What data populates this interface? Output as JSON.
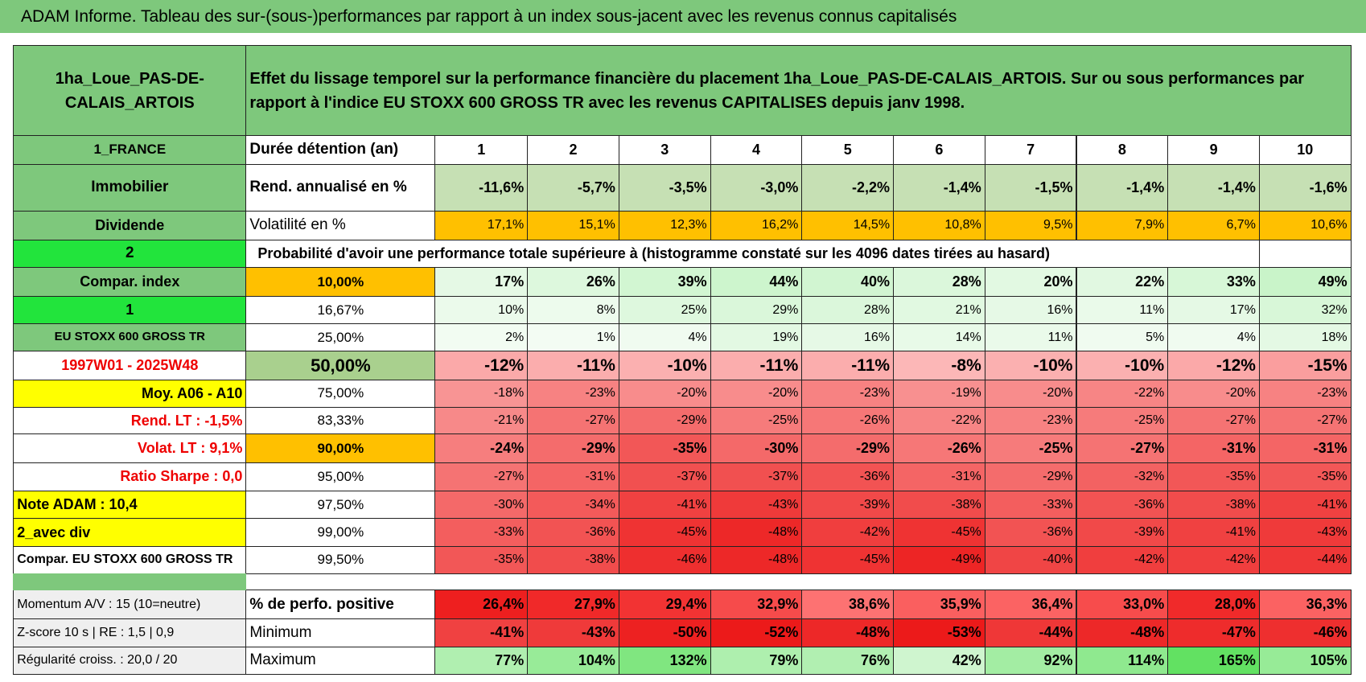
{
  "header": {
    "title": "ADAM Informe. Tableau des sur-(sous-)performances par rapport à un index sous-jacent avec les revenus connus capitalisés"
  },
  "table": {
    "rows": [
      [
        "1ha_Loue_PAS-DE-CALAIS_ARTOIS",
        "Effet du lissage temporel sur la performance financière du placement 1ha_Loue_PAS-DE-CALAIS_ARTOIS. Sur ou sous performances par rapport à l'indice EU STOXX 600 GROSS TR avec les revenus CAPITALISES depuis janv 1998."
      ],
      [
        "1_FRANCE",
        "Durée détention (an)",
        "1",
        "2",
        "3",
        "4",
        "5",
        "6",
        "7",
        "8",
        "9",
        "10"
      ],
      [
        "Immobilier",
        "Rend. annualisé en %",
        "-11,6%",
        "-5,7%",
        "-3,5%",
        "-3,0%",
        "-2,2%",
        "-1,4%",
        "-1,5%",
        "-1,4%",
        "-1,4%",
        "-1,6%"
      ],
      [
        "Dividende",
        "Volatilité en %",
        "17,1%",
        "15,1%",
        "12,3%",
        "16,2%",
        "14,5%",
        "10,8%",
        "9,5%",
        "7,9%",
        "6,7%",
        "10,6%"
      ],
      [
        "2",
        "Probabilité d'avoir une performance totale supérieure à (histogramme constaté sur les 4096 dates tirées au hasard)"
      ],
      [
        "Compar. index",
        "10,00%",
        "17%",
        "26%",
        "39%",
        "44%",
        "40%",
        "28%",
        "20%",
        "22%",
        "33%",
        "49%"
      ],
      [
        "1",
        "16,67%",
        "10%",
        "8%",
        "25%",
        "29%",
        "28%",
        "21%",
        "16%",
        "11%",
        "17%",
        "32%"
      ],
      [
        "EU STOXX 600 GROSS TR",
        "25,00%",
        "2%",
        "1%",
        "4%",
        "19%",
        "16%",
        "14%",
        "11%",
        "5%",
        "4%",
        "18%"
      ],
      [
        "1997W01 - 2025W48",
        "50,00%",
        "-12%",
        "-11%",
        "-10%",
        "-11%",
        "-11%",
        "-8%",
        "-10%",
        "-10%",
        "-12%",
        "-15%"
      ],
      [
        "Moy. A06 - A10",
        "75,00%",
        "-18%",
        "-23%",
        "-20%",
        "-20%",
        "-23%",
        "-19%",
        "-20%",
        "-22%",
        "-20%",
        "-23%"
      ],
      [
        "Rend. LT :   -1,5%",
        "83,33%",
        "-21%",
        "-27%",
        "-29%",
        "-25%",
        "-26%",
        "-22%",
        "-23%",
        "-25%",
        "-27%",
        "-27%"
      ],
      [
        "Volat. LT :   9,1%",
        "90,00%",
        "-24%",
        "-29%",
        "-35%",
        "-30%",
        "-29%",
        "-26%",
        "-25%",
        "-27%",
        "-31%",
        "-31%"
      ],
      [
        "Ratio Sharpe :    0,0",
        "95,00%",
        "-27%",
        "-31%",
        "-37%",
        "-37%",
        "-36%",
        "-31%",
        "-29%",
        "-32%",
        "-35%",
        "-35%"
      ],
      [
        "Note ADAM : 10,4",
        "97,50%",
        "-30%",
        "-34%",
        "-41%",
        "-43%",
        "-39%",
        "-38%",
        "-33%",
        "-36%",
        "-38%",
        "-41%"
      ],
      [
        "2_avec div",
        "99,00%",
        "-33%",
        "-36%",
        "-45%",
        "-48%",
        "-42%",
        "-45%",
        "-36%",
        "-39%",
        "-41%",
        "-43%"
      ],
      [
        "Compar. EU STOXX 600 GROSS TR",
        "99,50%",
        "-35%",
        "-38%",
        "-46%",
        "-48%",
        "-45%",
        "-49%",
        "-40%",
        "-42%",
        "-42%",
        "-44%"
      ],
      [
        "Momentum A/V : 15 (10=neutre)",
        "% de perfo. positive",
        "26,4%",
        "27,9%",
        "29,4%",
        "32,9%",
        "38,6%",
        "35,9%",
        "36,4%",
        "33,0%",
        "28,0%",
        "36,3%"
      ],
      [
        "Z-score 10 s | RE : 1,5 | 0,9",
        "Minimum",
        "-41%",
        "-43%",
        "-50%",
        "-52%",
        "-48%",
        "-53%",
        "-44%",
        "-48%",
        "-47%",
        "-46%"
      ],
      [
        "Régularité croiss. : 20,0 / 20",
        "Maximum",
        "77%",
        "104%",
        "132%",
        "79%",
        "76%",
        "42%",
        "92%",
        "114%",
        "165%",
        "105%"
      ]
    ]
  }
}
